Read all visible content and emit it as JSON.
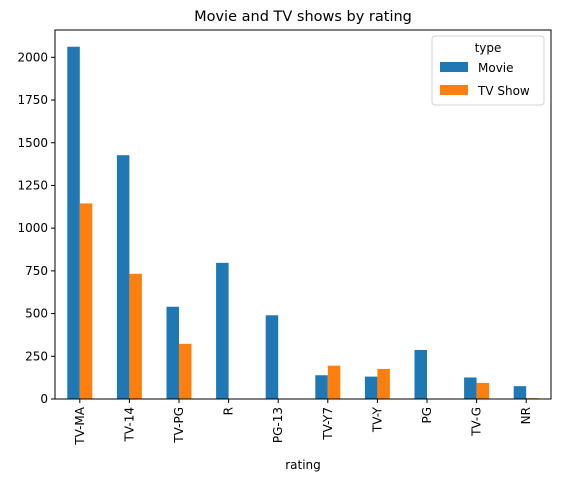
{
  "chart_data": {
    "type": "bar",
    "title": "Movie and TV shows by rating",
    "xlabel": "rating",
    "ylabel": "",
    "categories": [
      "TV-MA",
      "TV-14",
      "TV-PG",
      "R",
      "PG-13",
      "TV-Y7",
      "TV-Y",
      "PG",
      "TV-G",
      "NR"
    ],
    "series": [
      {
        "name": "Movie",
        "color": "#1f77b4",
        "values": [
          2062,
          1427,
          540,
          797,
          490,
          139,
          131,
          287,
          126,
          75
        ]
      },
      {
        "name": "TV Show",
        "color": "#ff7f0e",
        "values": [
          1145,
          733,
          323,
          2,
          0,
          195,
          176,
          0,
          94,
          5
        ]
      }
    ],
    "ylim": [
      0,
      2160
    ],
    "yticks": [
      0,
      250,
      500,
      750,
      1000,
      1250,
      1500,
      1750,
      2000
    ],
    "ytick_labels": [
      "0",
      "250",
      "500",
      "750",
      "1000",
      "1250",
      "1500",
      "1750",
      "2000"
    ],
    "legend": {
      "title": "type",
      "placement": "top-right"
    },
    "grid": false
  }
}
